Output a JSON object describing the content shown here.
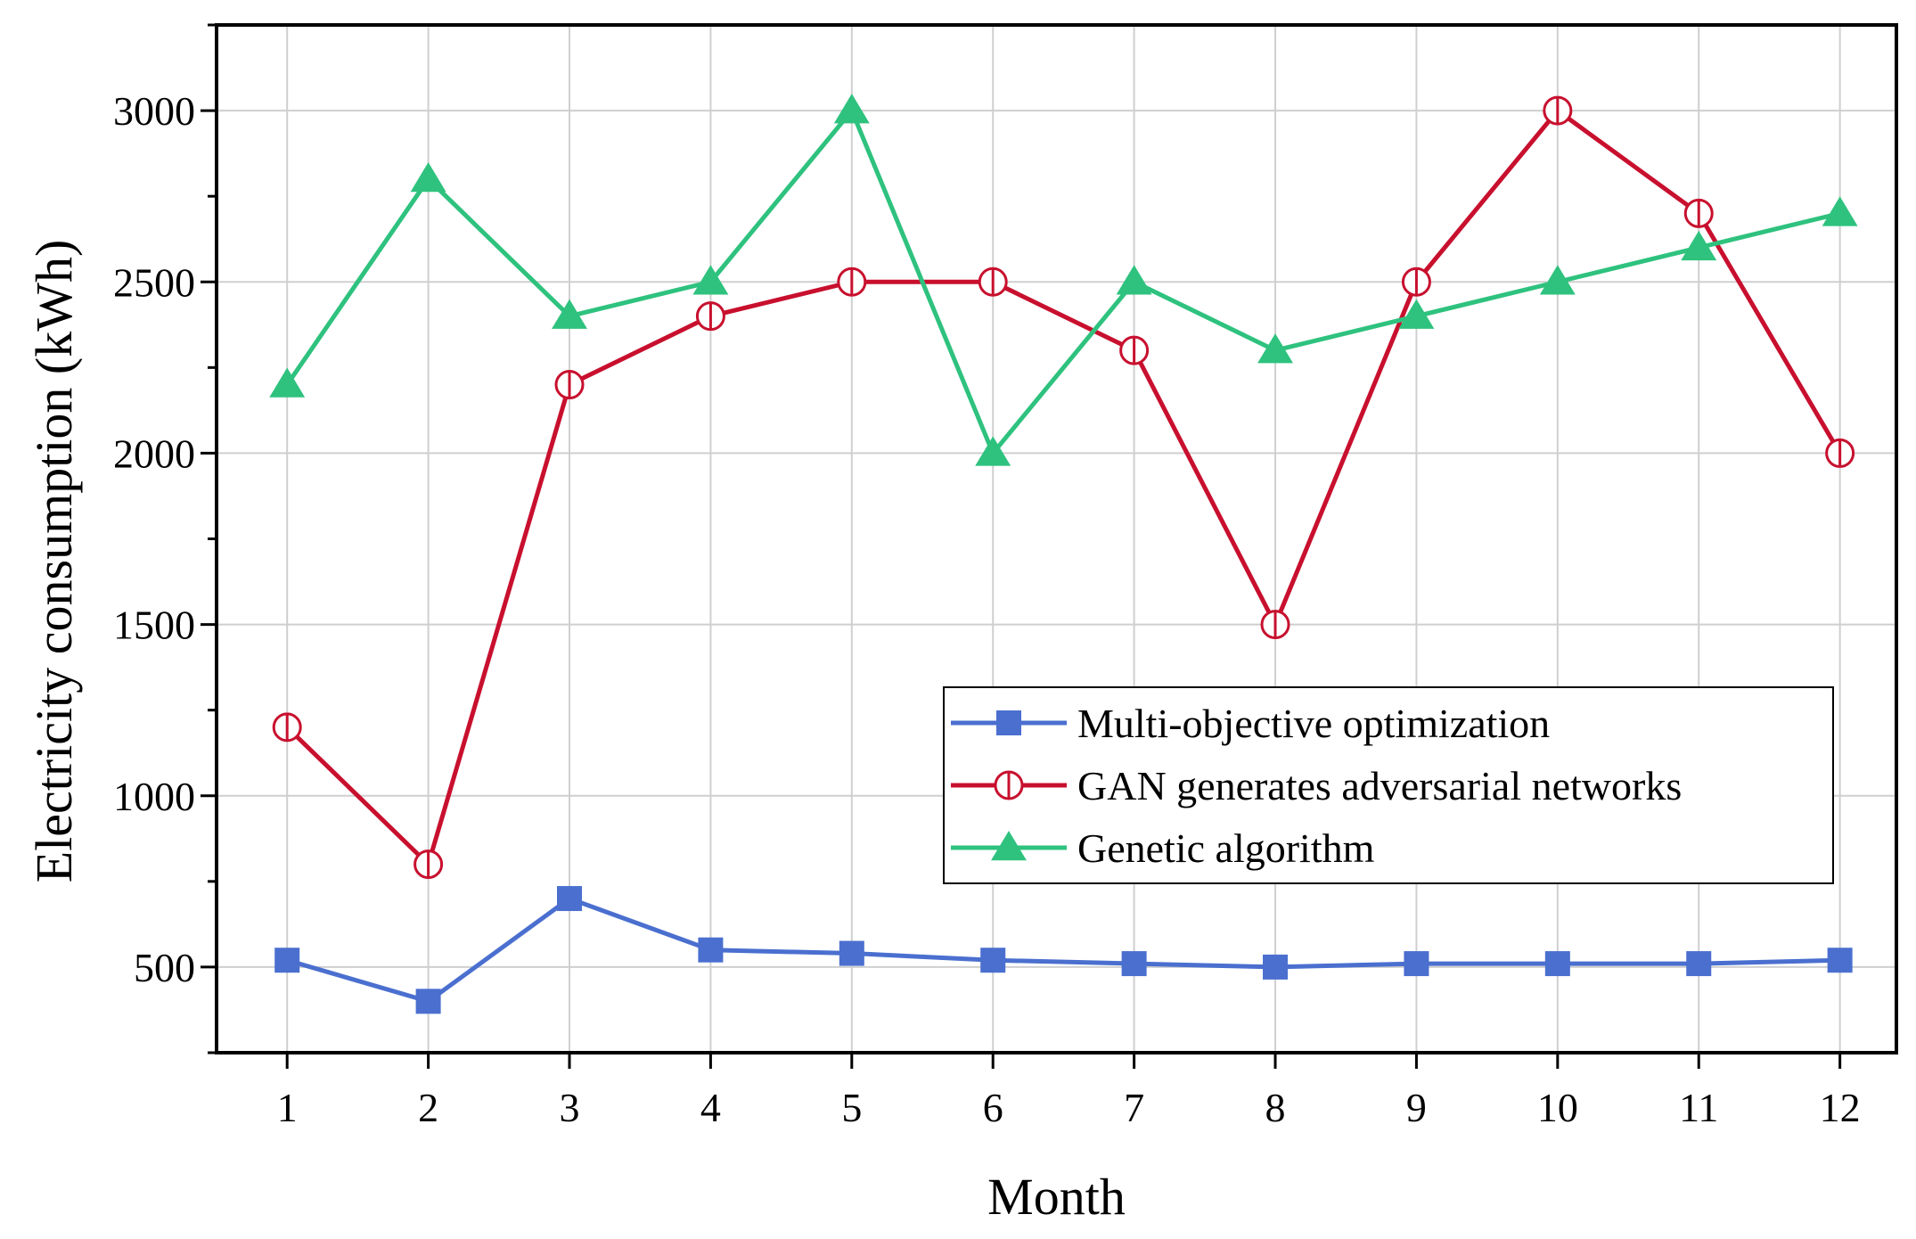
{
  "chart_data": {
    "type": "line",
    "title": "",
    "xlabel": "Month",
    "ylabel": "Electricity consumption (kWh)",
    "x": [
      1,
      2,
      3,
      4,
      5,
      6,
      7,
      8,
      9,
      10,
      11,
      12
    ],
    "xlim": [
      0.5,
      12.4
    ],
    "ylim": [
      250,
      3250
    ],
    "yticks": [
      500,
      1000,
      1500,
      2000,
      2500,
      3000
    ],
    "grid": true,
    "legend_position": "lower-right",
    "series": [
      {
        "name": "Multi-objective optimization",
        "color": "#4a6fcf",
        "marker": "square",
        "values": [
          520,
          400,
          700,
          550,
          540,
          520,
          510,
          500,
          510,
          510,
          510,
          520
        ]
      },
      {
        "name": "GAN generates adversarial networks",
        "color": "#c8102e",
        "marker": "circle-open",
        "values": [
          1200,
          800,
          2200,
          2400,
          2500,
          2500,
          2300,
          1500,
          2500,
          3000,
          2700,
          2000
        ]
      },
      {
        "name": "Genetic algorithm",
        "color": "#2ec27e",
        "marker": "triangle",
        "values": [
          2200,
          2800,
          2400,
          2500,
          3000,
          2000,
          2500,
          2300,
          2400,
          2500,
          2600,
          2700
        ]
      }
    ]
  }
}
